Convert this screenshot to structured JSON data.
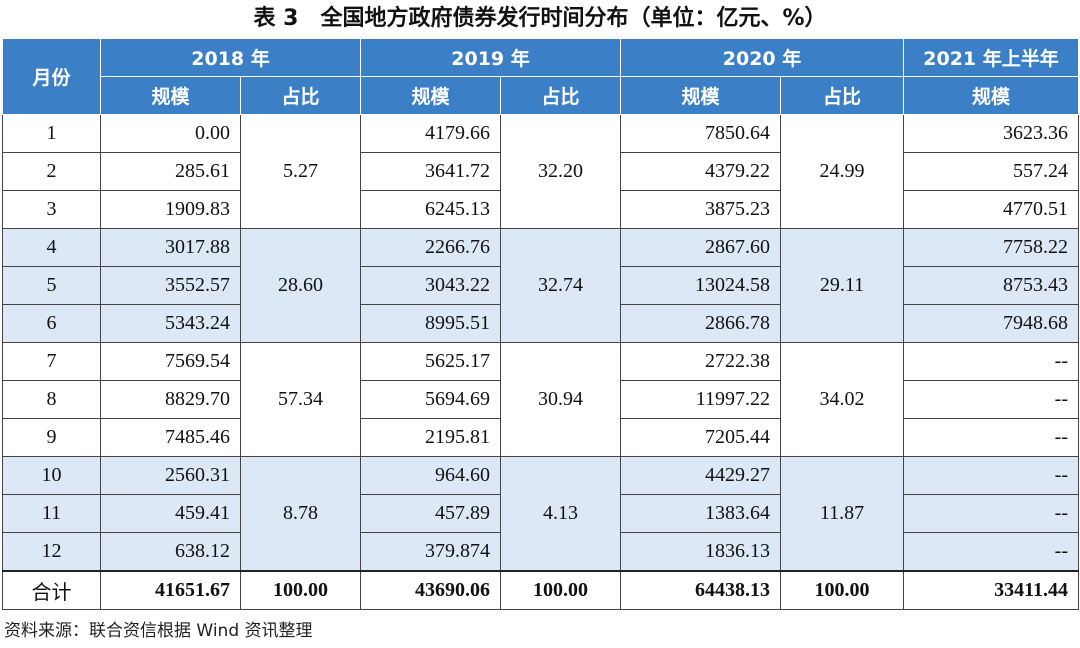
{
  "title": "表 3　全国地方政府债券发行时间分布（单位：亿元、%）",
  "header": {
    "month": "月份",
    "years": [
      "2018 年",
      "2019 年",
      "2020 年",
      "2021 年上半年"
    ],
    "sub": [
      "规模",
      "占比",
      "规模",
      "占比",
      "规模",
      "占比",
      "规模"
    ]
  },
  "rows": [
    [
      "1",
      "0.00",
      "4179.66",
      "7850.64",
      "3623.36"
    ],
    [
      "2",
      "285.61",
      "3641.72",
      "4379.22",
      "557.24"
    ],
    [
      "3",
      "1909.83",
      "6245.13",
      "3875.23",
      "4770.51"
    ],
    [
      "4",
      "3017.88",
      "2266.76",
      "2867.60",
      "7758.22"
    ],
    [
      "5",
      "3552.57",
      "3043.22",
      "13024.58",
      "8753.43"
    ],
    [
      "6",
      "5343.24",
      "8995.51",
      "2866.78",
      "7948.68"
    ],
    [
      "7",
      "7569.54",
      "5625.17",
      "2722.38",
      "--"
    ],
    [
      "8",
      "8829.70",
      "5694.69",
      "11997.22",
      "--"
    ],
    [
      "9",
      "7485.46",
      "2195.81",
      "7205.44",
      "--"
    ],
    [
      "10",
      "2560.31",
      "964.60",
      "4429.27",
      "--"
    ],
    [
      "11",
      "459.41",
      "457.89",
      "1383.64",
      "--"
    ],
    [
      "12",
      "638.12",
      "379.874",
      "1836.13",
      "--"
    ]
  ],
  "quarter_shares": [
    [
      "5.27",
      "32.20",
      "24.99"
    ],
    [
      "28.60",
      "32.74",
      "29.11"
    ],
    [
      "57.34",
      "30.94",
      "34.02"
    ],
    [
      "8.78",
      "4.13",
      "11.87"
    ]
  ],
  "total": [
    "合计",
    "41651.67",
    "100.00",
    "43690.06",
    "100.00",
    "64438.13",
    "100.00",
    "33411.44"
  ],
  "source": "资料来源：联合资信根据 Wind 资讯整理"
}
